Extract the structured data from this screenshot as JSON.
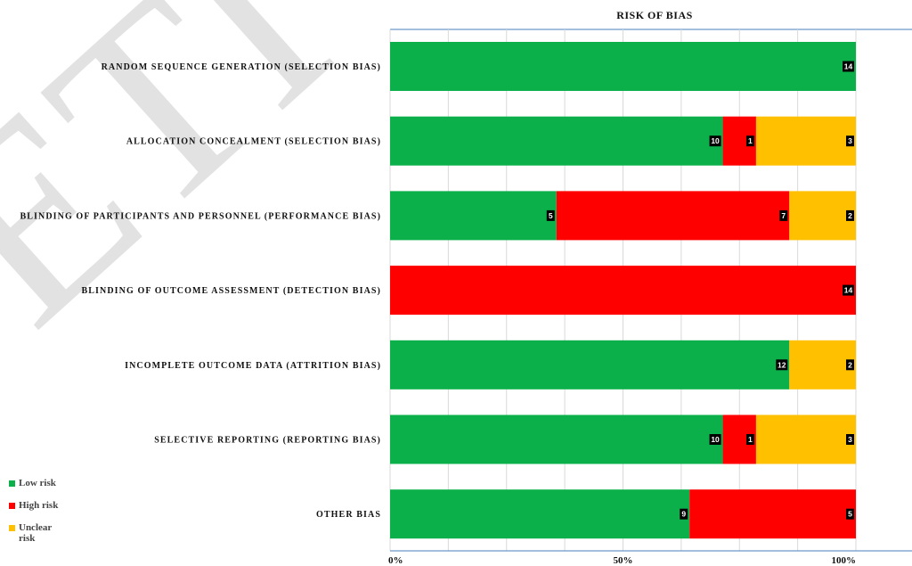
{
  "chart_data": {
    "type": "bar",
    "orientation": "horizontal",
    "stacked": "100%",
    "title": "RISK OF BIAS",
    "categories": [
      "RANDOM SEQUENCE GENERATION (SELECTION BIAS)",
      "ALLOCATION CONCEALMENT (SELECTION BIAS)",
      "BLINDING OF PARTICIPANTS AND PERSONNEL (PERFORMANCE BIAS)",
      "BLINDING OF OUTCOME ASSESSMENT (DETECTION BIAS)",
      "INCOMPLETE OUTCOME DATA (ATTRITION BIAS)",
      "SELECTIVE REPORTING (REPORTING BIAS)",
      "OTHER BIAS"
    ],
    "series": [
      {
        "name": "Low risk",
        "color": "#0cb04a",
        "values": [
          14,
          10,
          5,
          0,
          12,
          10,
          9
        ]
      },
      {
        "name": "High risk",
        "color": "#ff0000",
        "values": [
          0,
          1,
          7,
          14,
          0,
          1,
          5
        ]
      },
      {
        "name": "Unclear risk",
        "color": "#ffc000",
        "values": [
          0,
          3,
          2,
          0,
          2,
          3,
          0
        ]
      }
    ],
    "x_ticks": [
      "0%",
      "50%",
      "100%"
    ],
    "xlim": [
      0,
      100
    ],
    "grid": true,
    "legend_position": "bottom-left"
  },
  "legend": {
    "low": "Low risk",
    "high": "High risk",
    "unclear": "Unclear risk"
  },
  "watermark_text": "ETI"
}
